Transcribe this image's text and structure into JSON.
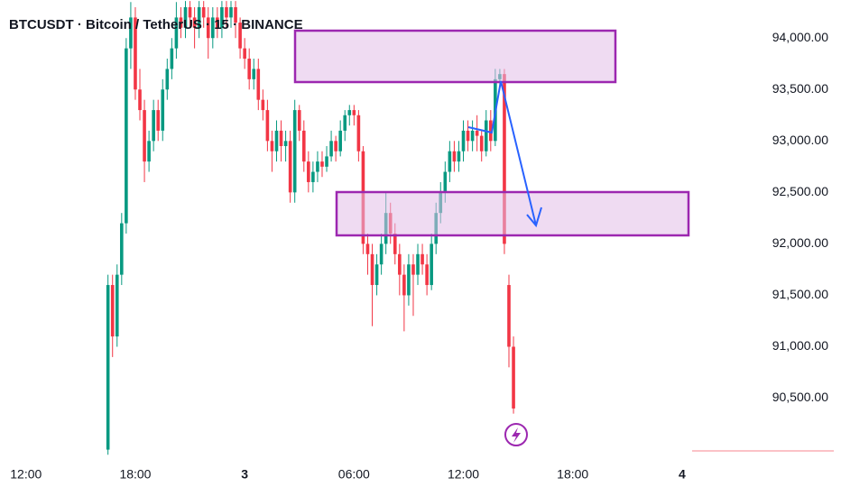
{
  "chart_data": {
    "type": "candlestick",
    "title": "BTCUSDT · Bitcoin / TetherUS · 15 · BINANCE",
    "up_color": "#089981",
    "down_color": "#f23645",
    "xlim": [
      -23.7,
      138.7
    ],
    "ylim": [
      89900,
      94370
    ],
    "xticks": [
      {
        "value": -18,
        "label": "12:00"
      },
      {
        "value": 6,
        "label": "18:00"
      },
      {
        "value": 30,
        "label": "3"
      },
      {
        "value": 54,
        "label": "06:00"
      },
      {
        "value": 78,
        "label": "12:00"
      },
      {
        "value": 102,
        "label": "18:00"
      },
      {
        "value": 126,
        "label": "4"
      }
    ],
    "yticks": [
      {
        "value": 94000,
        "label": "94,000.00"
      },
      {
        "value": 93500,
        "label": "93,500.00"
      },
      {
        "value": 93000,
        "label": "93,000.00"
      },
      {
        "value": 92500,
        "label": "92,500.00"
      },
      {
        "value": 92000,
        "label": "92,000.00"
      },
      {
        "value": 91500,
        "label": "91,500.00"
      },
      {
        "value": 91000,
        "label": "91,000.00"
      },
      {
        "value": 90500,
        "label": "90,500.00"
      }
    ],
    "ohlc": [
      [
        90000,
        91700,
        89950,
        91600
      ],
      [
        91600,
        91700,
        90900,
        91100
      ],
      [
        91100,
        91800,
        91000,
        91700
      ],
      [
        91700,
        92300,
        91600,
        92200
      ],
      [
        92200,
        94000,
        92100,
        93900
      ],
      [
        93900,
        94350,
        93700,
        94200
      ],
      [
        94200,
        94300,
        93400,
        93500
      ],
      [
        93500,
        93700,
        93200,
        93300
      ],
      [
        93300,
        93400,
        92600,
        92800
      ],
      [
        92800,
        93100,
        92700,
        93000
      ],
      [
        93000,
        93400,
        92900,
        93300
      ],
      [
        93300,
        93400,
        93000,
        93100
      ],
      [
        93100,
        93600,
        93000,
        93500
      ],
      [
        93500,
        93800,
        93400,
        93700
      ],
      [
        93700,
        94000,
        93600,
        93900
      ],
      [
        93900,
        94350,
        93800,
        94200
      ],
      [
        94200,
        94300,
        94000,
        94100
      ],
      [
        94100,
        94360,
        94000,
        94300
      ],
      [
        94300,
        94360,
        94100,
        94200
      ],
      [
        94200,
        94300,
        93900,
        94100
      ],
      [
        94100,
        94360,
        94000,
        94300
      ],
      [
        94300,
        94360,
        94100,
        94200
      ],
      [
        94200,
        94300,
        93800,
        94000
      ],
      [
        94000,
        94300,
        93900,
        94200
      ],
      [
        94200,
        94300,
        94000,
        94100
      ],
      [
        94100,
        94360,
        94000,
        94300
      ],
      [
        94300,
        94360,
        94100,
        94200
      ],
      [
        94200,
        94360,
        94100,
        94300
      ],
      [
        94300,
        94360,
        94000,
        94150
      ],
      [
        94150,
        94200,
        93800,
        93900
      ],
      [
        93900,
        94000,
        93700,
        93800
      ],
      [
        93800,
        93900,
        93500,
        93600
      ],
      [
        93600,
        93800,
        93500,
        93700
      ],
      [
        93700,
        93800,
        93300,
        93400
      ],
      [
        93400,
        93500,
        93200,
        93300
      ],
      [
        93300,
        93400,
        92900,
        93000
      ],
      [
        93000,
        93100,
        92700,
        92900
      ],
      [
        92900,
        93200,
        92800,
        93100
      ],
      [
        93100,
        93200,
        92800,
        92950
      ],
      [
        92950,
        93100,
        92800,
        93000
      ],
      [
        93000,
        93100,
        92400,
        92500
      ],
      [
        92500,
        93400,
        92400,
        93300
      ],
      [
        93300,
        93350,
        93000,
        93100
      ],
      [
        93100,
        93200,
        92700,
        92800
      ],
      [
        92800,
        92900,
        92500,
        92600
      ],
      [
        92600,
        92800,
        92500,
        92700
      ],
      [
        92700,
        92900,
        92600,
        92800
      ],
      [
        92800,
        92900,
        92650,
        92750
      ],
      [
        92750,
        92950,
        92700,
        92850
      ],
      [
        92850,
        93100,
        92800,
        93000
      ],
      [
        93000,
        93050,
        92800,
        92900
      ],
      [
        92900,
        93200,
        92850,
        93100
      ],
      [
        93100,
        93300,
        93000,
        93250
      ],
      [
        93250,
        93350,
        93150,
        93300
      ],
      [
        93300,
        93350,
        93150,
        93250
      ],
      [
        93250,
        93300,
        92800,
        92900
      ],
      [
        92900,
        92950,
        91900,
        92000
      ],
      [
        92000,
        92100,
        91700,
        91900
      ],
      [
        91900,
        92000,
        91200,
        91600
      ],
      [
        91600,
        91900,
        91500,
        91800
      ],
      [
        91800,
        92100,
        91700,
        92000
      ],
      [
        92000,
        92500,
        91900,
        92300
      ],
      [
        92300,
        92400,
        92000,
        92100
      ],
      [
        92100,
        92200,
        91800,
        91900
      ],
      [
        91900,
        92000,
        91500,
        91700
      ],
      [
        91700,
        91800,
        91150,
        91500
      ],
      [
        91500,
        91900,
        91400,
        91800
      ],
      [
        91800,
        91900,
        91300,
        91700
      ],
      [
        91700,
        92000,
        91600,
        91900
      ],
      [
        91900,
        92000,
        91700,
        91800
      ],
      [
        91800,
        91900,
        91500,
        91600
      ],
      [
        91600,
        92100,
        91550,
        92000
      ],
      [
        92000,
        92400,
        91900,
        92300
      ],
      [
        92300,
        92600,
        92200,
        92500
      ],
      [
        92500,
        92800,
        92400,
        92700
      ],
      [
        92700,
        93000,
        92600,
        92900
      ],
      [
        92900,
        93000,
        92700,
        92800
      ],
      [
        92800,
        93000,
        92700,
        92900
      ],
      [
        92900,
        93200,
        92800,
        93100
      ],
      [
        93100,
        93200,
        92900,
        93000
      ],
      [
        93000,
        93200,
        92900,
        93100
      ],
      [
        93100,
        93250,
        92900,
        93050
      ],
      [
        93050,
        93100,
        92800,
        92900
      ],
      [
        92900,
        93300,
        92850,
        93200
      ],
      [
        93200,
        93300,
        92900,
        93000
      ],
      [
        93000,
        93700,
        92950,
        93600
      ],
      [
        93600,
        93700,
        93500,
        93650
      ],
      [
        93650,
        93700,
        91900,
        92000
      ],
      [
        91600,
        91700,
        90800,
        91000
      ],
      [
        91000,
        91100,
        90350,
        90400
      ]
    ]
  }
}
